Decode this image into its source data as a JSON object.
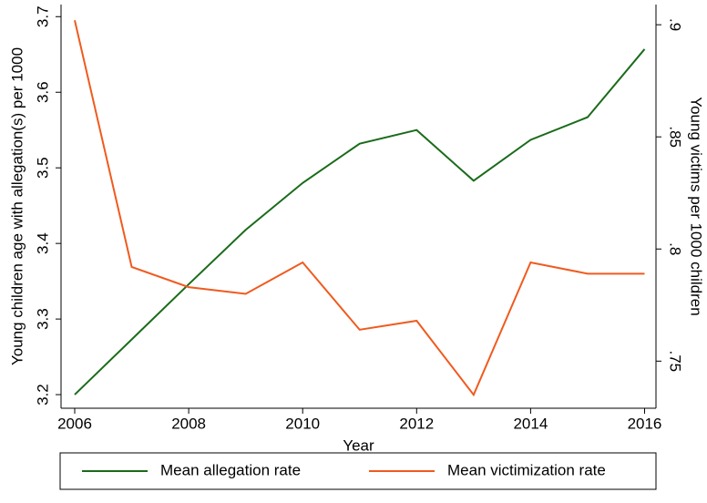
{
  "chart_data": {
    "type": "line",
    "x": [
      2006,
      2007,
      2008,
      2009,
      2010,
      2011,
      2012,
      2013,
      2014,
      2015,
      2016
    ],
    "xlim": [
      2005.76,
      2016.2
    ],
    "xticks": [
      2006,
      2008,
      2010,
      2012,
      2014,
      2016
    ],
    "xlabel": "Year",
    "ylabel": "Young children age with allegation(s) per 1000",
    "y2label": "Young victims per 1000 children",
    "ylim": [
      3.182,
      3.716
    ],
    "yticks": [
      3.2,
      3.3,
      3.4,
      3.5,
      3.6,
      3.7
    ],
    "y2lim": [
      0.729,
      0.909
    ],
    "y2ticks": [
      {
        "value": 0.75,
        "label": ".75"
      },
      {
        "value": 0.8,
        "label": ".8"
      },
      {
        "value": 0.85,
        "label": ".85"
      },
      {
        "value": 0.9,
        "label": ".9"
      }
    ],
    "series": [
      {
        "name": "Mean allegation rate",
        "color": "#1a6b1a",
        "values": [
          3.2,
          3.273,
          3.346,
          3.418,
          3.48,
          3.532,
          3.55,
          3.483,
          3.537,
          3.567,
          3.657
        ]
      },
      {
        "name": "Mean victimization rate",
        "color": "#f05a1e",
        "axis": "y2",
        "values": [
          0.902,
          0.792,
          0.783,
          0.78,
          0.794,
          0.764,
          0.768,
          0.735,
          0.794,
          0.789,
          0.789
        ]
      }
    ]
  }
}
